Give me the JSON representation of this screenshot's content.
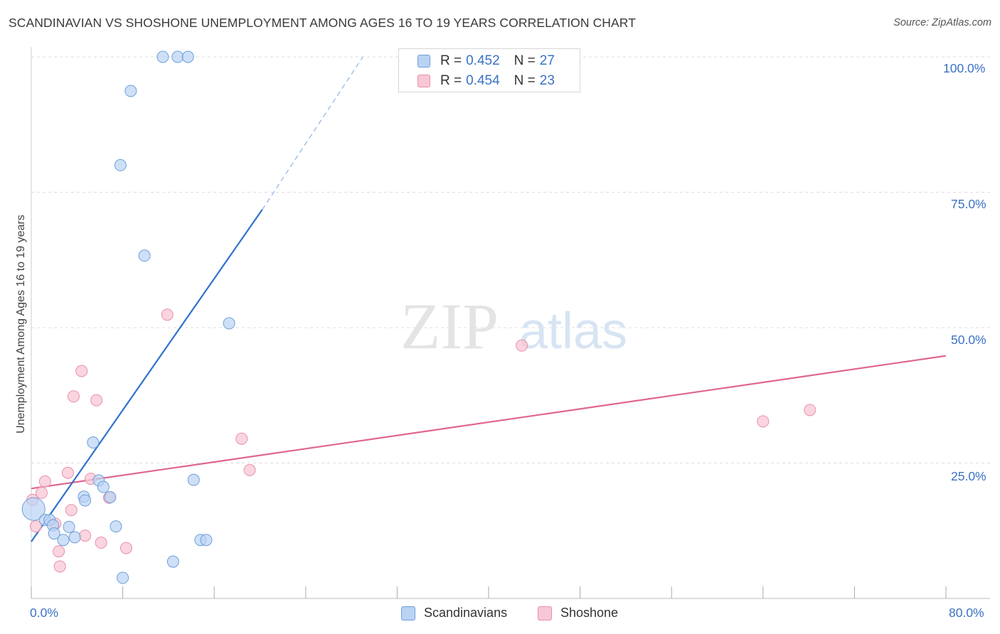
{
  "title": "SCANDINAVIAN VS SHOSHONE UNEMPLOYMENT AMONG AGES 16 TO 19 YEARS CORRELATION CHART",
  "source": "Source: ZipAtlas.com",
  "watermark": {
    "zip": "ZIP",
    "atlas": "atlas"
  },
  "legend_top": [
    {
      "r_label": "R =",
      "r_value": "0.452",
      "n_label": "N =",
      "n_value": "27"
    },
    {
      "r_label": "R =",
      "r_value": "0.454",
      "n_label": "N =",
      "n_value": "23"
    }
  ],
  "legend_bottom": [
    "Scandinavians",
    "Shoshone"
  ],
  "x_tick_labels": {
    "left": "0.0%",
    "right": "80.0%"
  },
  "y_tick_labels": [
    "100.0%",
    "75.0%",
    "50.0%",
    "25.0%"
  ],
  "colors": {
    "blue_fill": "#b9d3f3",
    "blue_stroke": "#6f9fd8",
    "blue_line": "#2f72cc",
    "pink_fill": "#f8c7d5",
    "pink_stroke": "#e890aa",
    "pink_line": "#e0668f",
    "tick_text": "#3a72c4",
    "grid": "#dddddd"
  },
  "chart_data": {
    "type": "scatter",
    "xlabel": "",
    "ylabel": "Unemployment Among Ages 16 to 19 years",
    "xlim": [
      0,
      80
    ],
    "ylim": [
      0,
      100
    ],
    "y_ticks": [
      25,
      50,
      75,
      100
    ],
    "grid": true,
    "series": [
      {
        "name": "Scandinavians",
        "points": [
          [
            0.2,
            16.5
          ],
          [
            1.2,
            14.5
          ],
          [
            1.6,
            14.5
          ],
          [
            1.9,
            13.5
          ],
          [
            2.0,
            12.0
          ],
          [
            2.8,
            10.8
          ],
          [
            3.3,
            13.2
          ],
          [
            3.8,
            11.3
          ],
          [
            4.6,
            18.8
          ],
          [
            4.7,
            18.1
          ],
          [
            5.4,
            28.8
          ],
          [
            5.9,
            21.8
          ],
          [
            6.3,
            20.6
          ],
          [
            6.9,
            18.7
          ],
          [
            7.4,
            13.3
          ],
          [
            8.0,
            3.8
          ],
          [
            7.8,
            80.0
          ],
          [
            8.7,
            93.7
          ],
          [
            9.9,
            63.3
          ],
          [
            11.5,
            100.0
          ],
          [
            12.4,
            6.8
          ],
          [
            12.8,
            100.0
          ],
          [
            13.7,
            100.0
          ],
          [
            14.2,
            21.9
          ],
          [
            14.8,
            10.8
          ],
          [
            15.3,
            10.8
          ],
          [
            17.3,
            50.8
          ]
        ],
        "trend": {
          "x": [
            0,
            20.2
          ],
          "y": [
            10.5,
            71.8
          ],
          "dashed_to": [
            29.0,
            100.0
          ]
        }
      },
      {
        "name": "Shoshone",
        "points": [
          [
            0.1,
            18.2
          ],
          [
            0.4,
            13.3
          ],
          [
            0.9,
            19.5
          ],
          [
            1.2,
            21.6
          ],
          [
            2.1,
            13.8
          ],
          [
            2.4,
            8.7
          ],
          [
            2.5,
            5.9
          ],
          [
            3.2,
            23.2
          ],
          [
            3.5,
            16.3
          ],
          [
            3.7,
            37.3
          ],
          [
            4.4,
            42.0
          ],
          [
            4.7,
            11.6
          ],
          [
            5.2,
            22.1
          ],
          [
            5.7,
            36.6
          ],
          [
            6.1,
            10.3
          ],
          [
            6.8,
            18.6
          ],
          [
            8.3,
            9.3
          ],
          [
            11.9,
            52.4
          ],
          [
            18.4,
            29.5
          ],
          [
            19.1,
            23.7
          ],
          [
            42.9,
            46.7
          ],
          [
            64.0,
            32.7
          ],
          [
            68.1,
            34.8
          ]
        ],
        "trend": {
          "x": [
            0,
            80
          ],
          "y": [
            20.3,
            44.8
          ]
        }
      }
    ]
  }
}
